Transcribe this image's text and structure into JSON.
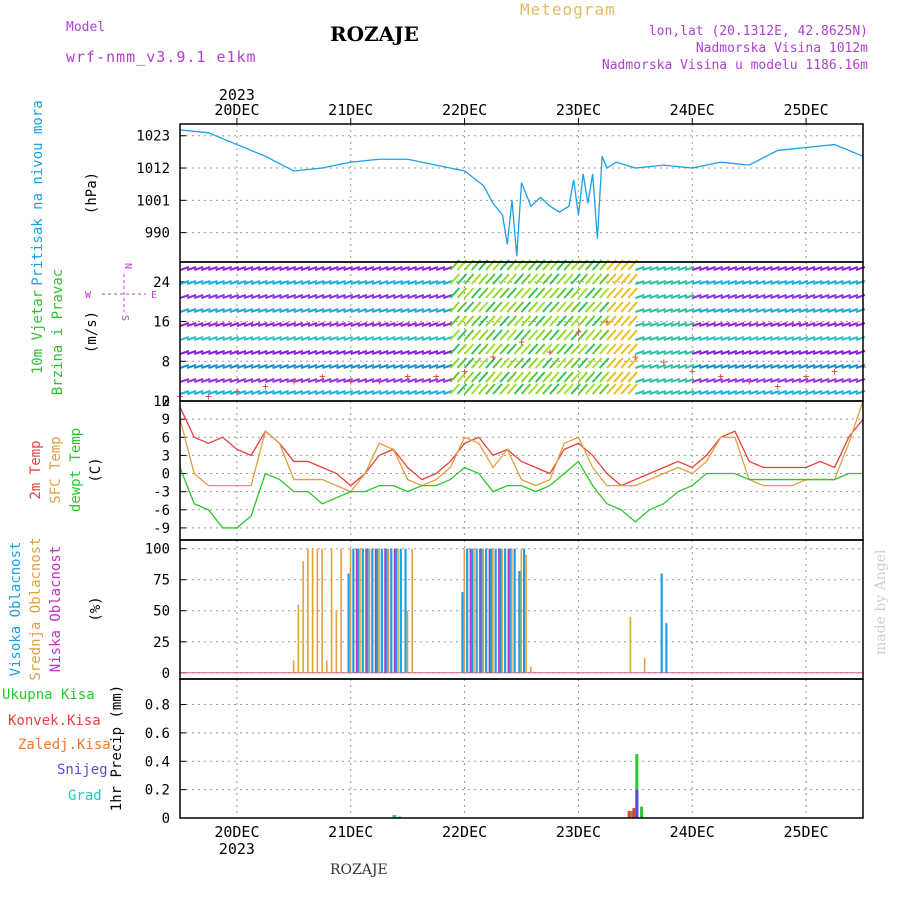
{
  "header": {
    "model_label": "Model",
    "model_name": "wrf-nmm_v3.9.1 e1km",
    "title": "ROZAJE",
    "meteogram_label": "Meteogram",
    "coords": "lon,lat (20.1312E, 42.8625N)",
    "altitude": "Nadmorska Visina 1012m",
    "model_altitude": "Nadmorska Visina u modelu 1186.16m",
    "made_by": "made by Angel",
    "footer_name": "ROZAJE"
  },
  "time_axis": {
    "year": "2023",
    "day_labels": [
      "20DEC",
      "21DEC",
      "22DEC",
      "23DEC",
      "24DEC",
      "25DEC"
    ],
    "range_hours": [
      -12,
      132
    ]
  },
  "colors": {
    "pressure": "#1aa0e8",
    "temp2m": "#e8403c",
    "sfc_temp": "#e0a040",
    "dewpoint": "#2cc82c",
    "cloud_high": "#1aa0e8",
    "cloud_mid": "#e0a040",
    "cloud_low": "#c030c0",
    "precip_total": "#2cc82c",
    "precip_conv": "#e8403c",
    "precip_frz": "#f07828",
    "precip_snow": "#5050e0",
    "precip_hail": "#20c8c8",
    "wind_label": "#30c030",
    "axis_label_purple": "#c040d0"
  },
  "panels": {
    "pressure": {
      "ylabel_main": "Pritisak na nivou mora",
      "unit": "(hPa)",
      "ticks": [
        "1023",
        "1012",
        "1001",
        "990"
      ],
      "ylim": [
        980,
        1027
      ]
    },
    "wind": {
      "ylabel_1": "10m Vjetar",
      "ylabel_2": "Brzina i Pravac",
      "unit": "(m/s)",
      "ticks": [
        "24",
        "16",
        "8",
        "0"
      ],
      "ylim": [
        0,
        28
      ],
      "compass": [
        "N",
        "W",
        "E",
        "S"
      ]
    },
    "temperature": {
      "ylabel_1": "2m Temp",
      "ylabel_2": "SFC Temp",
      "ylabel_3": "dewpt Temp",
      "unit": "(C)",
      "ticks": [
        "12",
        "9",
        "6",
        "3",
        "0",
        "-3",
        "-6",
        "-9"
      ],
      "ylim": [
        -11,
        12
      ]
    },
    "cloud": {
      "ylabel_1": "Visoka Oblacnost",
      "ylabel_2": "Srednja Oblacnost",
      "ylabel_3": "Niska Oblacnost",
      "unit": "(%)",
      "ticks": [
        "100",
        "75",
        "50",
        "25",
        "0"
      ],
      "ylim": [
        -5,
        107
      ]
    },
    "precip": {
      "legend": [
        "Ukupna Kisa",
        "Konvek.Kisa",
        "Zaledj.Kisa",
        "Snijeg",
        "Grad"
      ],
      "ylabel": "1hr Precip (mm)",
      "ticks": [
        "0.8",
        "0.6",
        "0.4",
        "0.2",
        "0"
      ],
      "ylim": [
        0,
        0.98
      ]
    }
  },
  "chart_data": [
    {
      "type": "line",
      "title": "Pritisak na nivou mora (hPa)",
      "series": [
        {
          "name": "Pritisak na nivou mora",
          "x": [
            -12,
            -6,
            0,
            6,
            12,
            18,
            24,
            30,
            36,
            42,
            48,
            52,
            54,
            55,
            56,
            57,
            58,
            59,
            60,
            62,
            64,
            66,
            68,
            70,
            71,
            72,
            73,
            74,
            75,
            76,
            77,
            78,
            80,
            84,
            90,
            96,
            102,
            108,
            114,
            120,
            126,
            132
          ],
          "values": [
            1025,
            1024,
            1020,
            1016,
            1011,
            1012,
            1014,
            1015,
            1015,
            1013,
            1011,
            1006,
            1000,
            998,
            996,
            986,
            1001,
            982,
            1007,
            999,
            1002,
            999,
            997,
            999,
            1008,
            996,
            1010,
            1000,
            1010,
            988,
            1016,
            1012,
            1014,
            1012,
            1013,
            1012,
            1014,
            1013,
            1018,
            1019,
            1020,
            1016
          ]
        }
      ]
    },
    {
      "type": "scatter",
      "title": "10m Vjetar Brzina i Pravac (m/s)",
      "x": [
        -12,
        -6,
        0,
        6,
        12,
        18,
        24,
        30,
        36,
        42,
        48,
        54,
        60,
        66,
        72,
        78,
        84,
        90,
        96,
        102,
        108,
        114,
        120,
        126,
        132
      ],
      "values": [
        1,
        1,
        2,
        3,
        4,
        5,
        4,
        4,
        5,
        5,
        6,
        9,
        12,
        10,
        14,
        16,
        9,
        8,
        6,
        5,
        4,
        3,
        5,
        6,
        7
      ]
    },
    {
      "type": "line",
      "title": "Temperature (C)",
      "series": [
        {
          "name": "2m Temp",
          "x": [
            -12,
            -9,
            -6,
            -3,
            0,
            3,
            6,
            9,
            12,
            15,
            18,
            21,
            24,
            27,
            30,
            33,
            36,
            39,
            42,
            45,
            48,
            51,
            54,
            57,
            60,
            63,
            66,
            69,
            72,
            75,
            78,
            81,
            84,
            87,
            90,
            93,
            96,
            99,
            102,
            105,
            108,
            111,
            114,
            117,
            120,
            123,
            126,
            129,
            132
          ],
          "values": [
            11,
            6,
            5,
            6,
            4,
            3,
            7,
            5,
            2,
            2,
            1,
            0,
            -2,
            0,
            3,
            4,
            1,
            -1,
            0,
            2,
            5,
            6,
            3,
            4,
            2,
            1,
            0,
            4,
            5,
            3,
            0,
            -2,
            -1,
            0,
            1,
            2,
            1,
            3,
            6,
            7,
            2,
            1,
            1,
            1,
            1,
            2,
            1,
            6,
            9
          ]
        },
        {
          "name": "SFC Temp",
          "x": [
            -12,
            -9,
            -6,
            -3,
            0,
            3,
            6,
            9,
            12,
            15,
            18,
            21,
            24,
            27,
            30,
            33,
            36,
            39,
            42,
            45,
            48,
            51,
            54,
            57,
            60,
            63,
            66,
            69,
            72,
            75,
            78,
            81,
            84,
            87,
            90,
            93,
            96,
            99,
            102,
            105,
            108,
            111,
            114,
            117,
            120,
            123,
            126,
            129,
            132
          ],
          "values": [
            9,
            0,
            -2,
            -2,
            -2,
            -2,
            7,
            5,
            -1,
            -1,
            -1,
            -2,
            -3,
            0,
            5,
            4,
            -1,
            -2,
            -1,
            1,
            6,
            5,
            1,
            4,
            -1,
            -2,
            -1,
            5,
            6,
            1,
            -2,
            -2,
            -2,
            -1,
            0,
            1,
            0,
            2,
            6,
            6,
            -1,
            -2,
            -2,
            -2,
            -1,
            -1,
            -1,
            5,
            12
          ]
        },
        {
          "name": "dewpt Temp",
          "x": [
            -12,
            -9,
            -6,
            -3,
            0,
            3,
            6,
            9,
            12,
            15,
            18,
            21,
            24,
            27,
            30,
            33,
            36,
            39,
            42,
            45,
            48,
            51,
            54,
            57,
            60,
            63,
            66,
            69,
            72,
            75,
            78,
            81,
            84,
            87,
            90,
            93,
            96,
            99,
            102,
            105,
            108,
            111,
            114,
            117,
            120,
            123,
            126,
            129,
            132
          ],
          "values": [
            1,
            -5,
            -6,
            -9,
            -9,
            -7,
            0,
            -1,
            -3,
            -3,
            -5,
            -4,
            -3,
            -3,
            -2,
            -2,
            -3,
            -2,
            -2,
            -1,
            1,
            0,
            -3,
            -2,
            -2,
            -3,
            -2,
            0,
            2,
            -2,
            -5,
            -6,
            -8,
            -6,
            -5,
            -3,
            -2,
            0,
            0,
            0,
            -1,
            -1,
            -1,
            -1,
            -1,
            -1,
            -1,
            0,
            0
          ]
        }
      ]
    },
    {
      "type": "bar",
      "title": "Oblacnost (%)",
      "series": [
        {
          "name": "Visoka Oblacnost",
          "x": [
            23,
            24,
            25,
            26,
            27,
            28,
            29,
            30,
            31,
            32,
            33,
            34,
            35,
            47,
            48,
            49,
            50,
            51,
            52,
            53,
            54,
            55,
            56,
            57,
            58,
            59,
            60,
            89,
            90
          ],
          "values": [
            80,
            100,
            100,
            100,
            100,
            100,
            100,
            100,
            100,
            100,
            100,
            100,
            100,
            65,
            100,
            100,
            100,
            100,
            100,
            100,
            100,
            100,
            100,
            100,
            100,
            82,
            100,
            80,
            40
          ]
        },
        {
          "name": "Srednja Oblacnost",
          "x": [
            12,
            13,
            14,
            15,
            16,
            17,
            18,
            19,
            20,
            21,
            22,
            24,
            26,
            28,
            30,
            32,
            34,
            36,
            37,
            48,
            50,
            52,
            54,
            56,
            58,
            60,
            61,
            62,
            83,
            86
          ],
          "values": [
            10,
            55,
            90,
            100,
            100,
            100,
            100,
            10,
            100,
            50,
            100,
            100,
            100,
            100,
            100,
            100,
            100,
            50,
            100,
            100,
            100,
            100,
            100,
            100,
            100,
            100,
            95,
            5,
            45,
            12
          ]
        },
        {
          "name": "Niska Oblacnost",
          "x": [
            25,
            27,
            29,
            31,
            33,
            49,
            51,
            53,
            55,
            57
          ],
          "values": [
            100,
            100,
            100,
            100,
            100,
            100,
            100,
            100,
            100,
            100
          ]
        }
      ]
    },
    {
      "type": "bar",
      "title": "1hr Precip (mm)",
      "series": [
        {
          "name": "Ukupna Kisa",
          "x": [
            33,
            34,
            83,
            84,
            85
          ],
          "values": [
            0.02,
            0.01,
            0.05,
            0.45,
            0.08
          ]
        },
        {
          "name": "Konvek.Kisa",
          "x": [
            83,
            84
          ],
          "values": [
            0.05,
            0.07
          ]
        },
        {
          "name": "Zaledj.Kisa",
          "x": [],
          "values": []
        },
        {
          "name": "Snijeg",
          "x": [
            84
          ],
          "values": [
            0.2
          ]
        },
        {
          "name": "Grad",
          "x": [
            33
          ],
          "values": [
            0.02
          ]
        }
      ]
    }
  ]
}
